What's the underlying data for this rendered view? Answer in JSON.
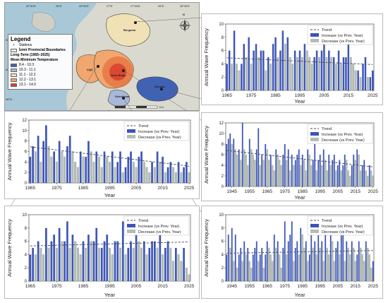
{
  "map": {
    "legend_title": "Legend",
    "stations_label": "Stations",
    "boundaries_label": "İzmir Provincial Boundaries",
    "period_label": "Long-Term (1965–2025)",
    "temp_label": "Mean Minimum Temperature",
    "classes": [
      {
        "label": "8.4 - 10.3",
        "color": "#3f62b5"
      },
      {
        "label": "10.3 - 11.1",
        "color": "#a9b8d8"
      },
      {
        "label": "11.1 - 12.2",
        "color": "#f0e2b6"
      },
      {
        "label": "12.2 - 13.1",
        "color": "#f1a76e"
      },
      {
        "label": "13.1 - 14.0",
        "color": "#d9432e"
      }
    ],
    "lon_ticks": [
      "26°30'E",
      "26°E",
      "26°30'E",
      "27°E",
      "27°30'E",
      "28°E",
      "28°30'E"
    ],
    "lat_ticks": [
      "39°N",
      "38°30'N",
      "38°N"
    ],
    "places": [
      "Bergama",
      "Çiğli",
      "Izmir Bölge",
      "Ödemiş",
      "Seferihisar"
    ],
    "scale_label": "Km",
    "north_label": "N"
  },
  "legend_labels": {
    "trend": "Trend",
    "increase": "Increase (vs Prev. Year)",
    "decrease": "Decrease (vs Prev. Year)"
  },
  "colors": {
    "increase": "#3d55b8",
    "decrease": "#b4bdb5",
    "trend": "#444444",
    "connector": "#666666"
  },
  "chart_data": [
    {
      "id": "top-right",
      "type": "bar",
      "title": "",
      "xlabel": "Year",
      "ylabel": "Annual Wave Frequency",
      "ylim": [
        0,
        10
      ],
      "yticks": [
        0,
        2,
        4,
        6,
        8,
        10
      ],
      "x_ticks": [
        1965,
        1975,
        1985,
        1995,
        2005,
        2015,
        2025
      ],
      "x_start": 1965,
      "values": [
        4,
        6,
        4,
        9,
        4,
        3,
        4,
        7,
        5,
        8,
        4,
        6,
        7,
        5,
        6,
        6,
        3,
        5,
        4,
        7,
        8,
        5,
        6,
        9,
        7,
        8,
        5,
        4,
        6,
        5,
        6,
        5,
        7,
        6,
        5,
        4,
        5,
        6,
        5,
        6,
        7,
        5,
        6,
        5,
        5,
        4,
        6,
        4,
        5,
        5,
        7,
        5,
        4,
        3,
        3,
        2,
        4,
        5,
        2,
        2,
        3
      ],
      "trend": [
        4.9,
        3.9
      ]
    },
    {
      "id": "middle-left",
      "type": "bar",
      "title": "",
      "xlabel": "Year",
      "ylabel": "Annual Wave Frequency",
      "ylim": [
        0,
        12
      ],
      "yticks": [
        0,
        2,
        4,
        6,
        8,
        10,
        12
      ],
      "x_ticks": [
        1965,
        1975,
        1985,
        1995,
        2005,
        2015,
        2025
      ],
      "x_start": 1965,
      "values": [
        5,
        7,
        6,
        9,
        4,
        8,
        11,
        7,
        5,
        6,
        4,
        8,
        6,
        5,
        7,
        9,
        6,
        4,
        3,
        6,
        5,
        5,
        8,
        6,
        4,
        6,
        5,
        3,
        6,
        5,
        4,
        6,
        3,
        4,
        6,
        2,
        3,
        5,
        6,
        4,
        3,
        5,
        6,
        4,
        3,
        2,
        4,
        3,
        6,
        4,
        5,
        2,
        3,
        4,
        3,
        2,
        4,
        2,
        3,
        4,
        2
      ],
      "trend": [
        6.9,
        3.2
      ]
    },
    {
      "id": "middle-right",
      "type": "bar",
      "title": "",
      "xlabel": "Year",
      "ylabel": "Annual Wave Frequency",
      "ylim": [
        0,
        12
      ],
      "yticks": [
        0,
        2,
        4,
        6,
        8,
        10,
        12
      ],
      "x_ticks": [
        1945,
        1955,
        1965,
        1975,
        1985,
        1995,
        2005,
        2015,
        2025
      ],
      "x_start": 1942,
      "values": [
        8,
        9,
        10,
        8,
        9,
        7,
        6,
        7,
        5,
        12,
        7,
        6,
        4,
        9,
        7,
        6,
        5,
        7,
        11,
        4,
        6,
        5,
        8,
        7,
        5,
        6,
        4,
        3,
        7,
        6,
        5,
        4,
        6,
        8,
        5,
        7,
        3,
        6,
        4,
        5,
        6,
        7,
        4,
        6,
        5,
        3,
        7,
        6,
        4,
        5,
        8,
        3,
        5,
        6,
        4,
        7,
        5,
        3,
        6,
        4,
        5,
        6,
        3,
        4,
        5,
        3,
        4,
        6,
        5,
        3,
        2,
        4,
        6,
        5,
        7,
        6,
        3,
        4,
        5,
        3,
        2,
        4,
        3,
        2
      ],
      "trend": [
        6.8,
        3.7
      ]
    },
    {
      "id": "bottom-left",
      "type": "bar",
      "title": "",
      "xlabel": "Year",
      "ylabel": "Annual Wave Frequency",
      "ylim": [
        0,
        10
      ],
      "yticks": [
        0,
        2,
        4,
        6,
        8,
        10
      ],
      "x_ticks": [
        1965,
        1975,
        1985,
        1995,
        2005,
        2015,
        2025
      ],
      "x_start": 1965,
      "values": [
        4,
        5,
        4,
        6,
        5,
        4,
        8,
        5,
        6,
        7,
        5,
        8,
        6,
        6,
        9,
        5,
        7,
        6,
        5,
        4,
        6,
        5,
        7,
        6,
        6,
        8,
        5,
        5,
        6,
        7,
        5,
        4,
        6,
        6,
        5,
        9,
        4,
        5,
        6,
        5,
        7,
        6,
        5,
        6,
        4,
        5,
        6,
        6,
        5,
        7,
        4,
        5,
        6,
        5,
        3,
        5,
        4,
        3,
        5,
        2,
        1
      ],
      "trend": [
        5.3,
        5.9
      ]
    },
    {
      "id": "bottom-right",
      "type": "bar",
      "title": "",
      "xlabel": "Year",
      "ylabel": "Annual Wave Frequency",
      "ylim": [
        0,
        10
      ],
      "yticks": [
        0,
        2,
        4,
        6,
        8,
        10
      ],
      "x_ticks": [
        1945,
        1955,
        1965,
        1975,
        1985,
        1995,
        2005,
        2015,
        2025
      ],
      "x_start": 1942,
      "values": [
        4,
        7,
        5,
        8,
        3,
        7,
        2,
        4,
        5,
        3,
        6,
        4,
        5,
        3,
        2,
        4,
        5,
        6,
        3,
        4,
        5,
        2,
        4,
        6,
        5,
        4,
        3,
        7,
        5,
        6,
        4,
        2,
        5,
        9,
        4,
        6,
        7,
        9,
        3,
        5,
        6,
        4,
        8,
        7,
        5,
        6,
        3,
        4,
        9,
        5,
        6,
        4,
        7,
        5,
        6,
        3,
        8,
        5,
        4,
        7,
        6,
        3,
        5,
        6,
        4,
        7,
        8,
        3,
        6,
        5,
        4,
        6,
        5,
        3,
        4,
        6,
        5,
        4,
        3,
        6,
        5,
        4,
        2,
        3
      ],
      "trend": [
        4.2,
        4.6
      ]
    }
  ]
}
